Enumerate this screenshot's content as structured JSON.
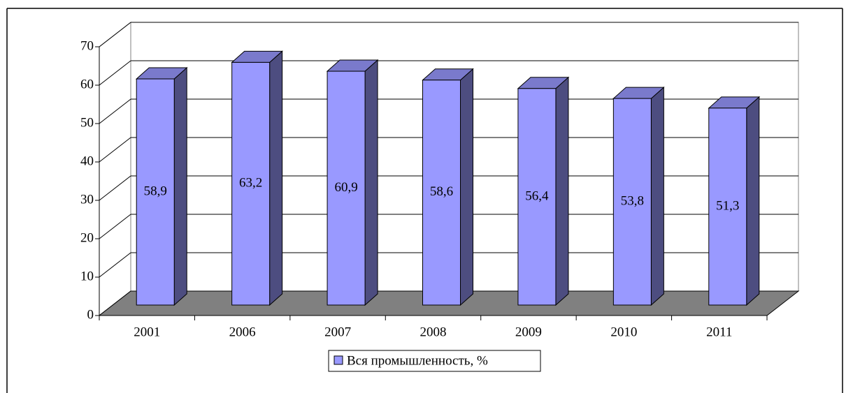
{
  "chart_data": {
    "type": "bar3d",
    "categories": [
      "2001",
      "2006",
      "2007",
      "2008",
      "2009",
      "2010",
      "2011"
    ],
    "series": [
      {
        "name": "Вся промышленность, %",
        "color": "#9999ff",
        "values": [
          58.9,
          63.2,
          60.9,
          58.6,
          56.4,
          53.8,
          51.3
        ],
        "value_labels": [
          "58,9",
          "63,2",
          "60,9",
          "58,6",
          "56,4",
          "53,8",
          "51,3"
        ]
      }
    ],
    "ylim": [
      0,
      70
    ],
    "yticks": [
      0,
      10,
      20,
      30,
      40,
      50,
      60,
      70
    ],
    "grid": true,
    "legend": "bottom"
  }
}
